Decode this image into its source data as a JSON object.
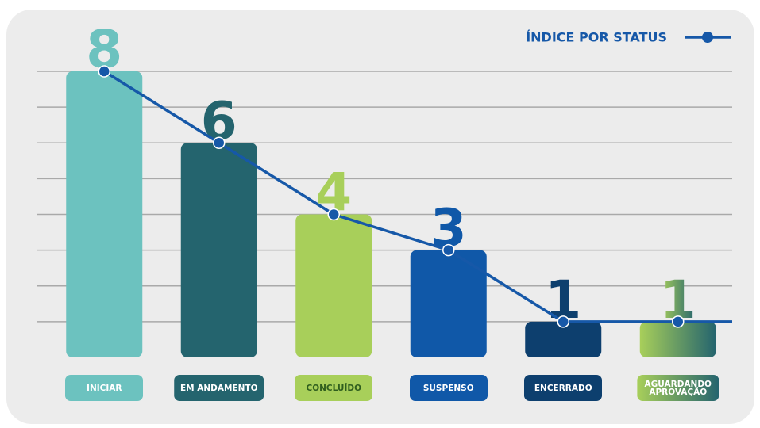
{
  "chart_data": {
    "type": "bar_line",
    "categories": [
      "INICIAR",
      "EM ANDAMENTO",
      "CONCLUÍDO",
      "SUSPENSO",
      "ENCERRADO",
      "AGUARDANDO APROVAÇÃO"
    ],
    "series": [
      {
        "name": "ÍNDICE POR STATUS",
        "color": "#1658a8",
        "values": [
          8,
          6,
          4,
          3,
          1,
          1
        ]
      }
    ],
    "bar_colors": [
      "#6cc2bf",
      "#24646e",
      "#a8cf5a",
      "#1058a8",
      "#0d3f6e",
      [
        "#a8cf5a",
        "#24646e"
      ]
    ],
    "ylim": [
      0,
      8
    ],
    "yticks": [
      1,
      2,
      3,
      4,
      5,
      6,
      7,
      8
    ],
    "grid": true,
    "legend": "top-right"
  }
}
